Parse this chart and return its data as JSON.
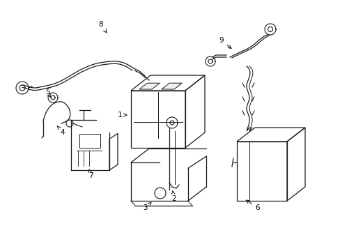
{
  "background_color": "#ffffff",
  "line_color": "#1a1a1a",
  "label_color": "#000000",
  "figsize": [
    4.89,
    3.6
  ],
  "dpi": 100,
  "lw": 0.9,
  "lw_thick": 1.4
}
